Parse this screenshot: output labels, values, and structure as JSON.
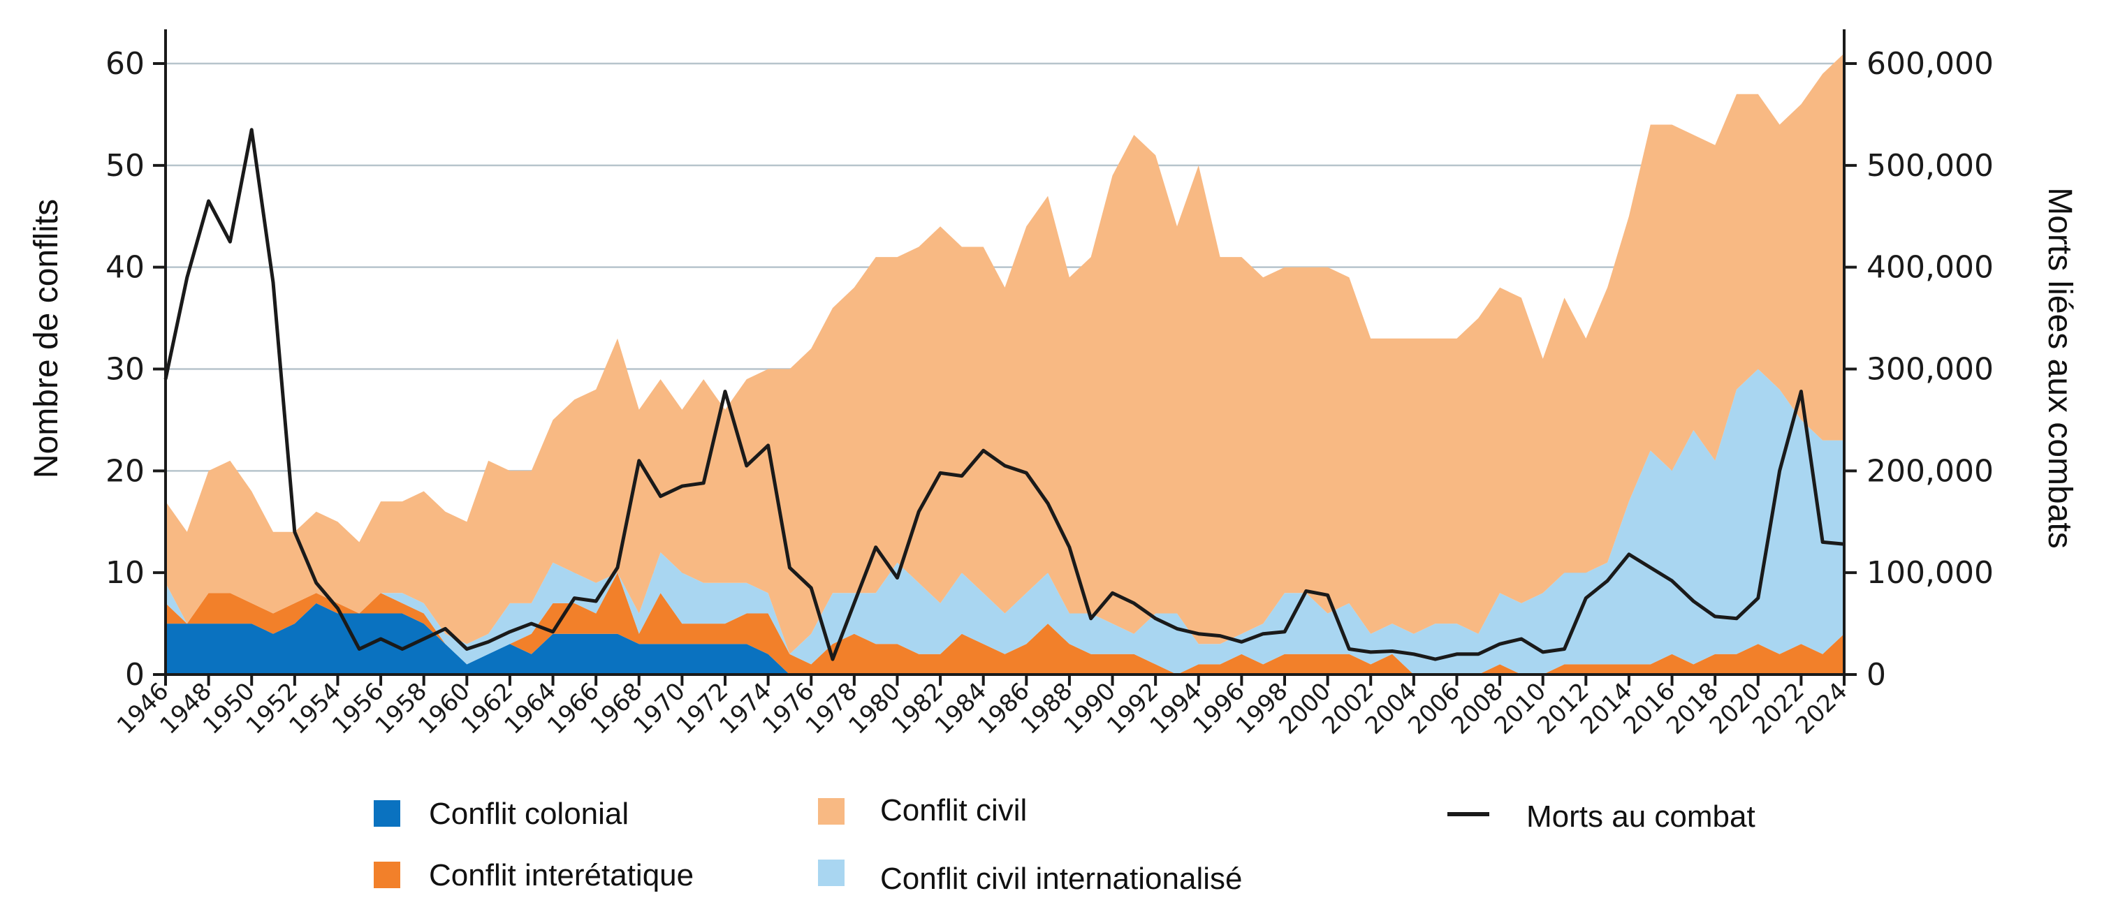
{
  "chart_data": {
    "type": "area",
    "subtype": "stacked area with line on secondary axis",
    "title": "",
    "ylabel": "Nombre de conflits",
    "y2label": "Morts liées aux combats",
    "ylim": [
      0,
      60
    ],
    "y2lim": [
      0,
      600000
    ],
    "yticks": [
      "0",
      "10",
      "20",
      "30",
      "40",
      "50",
      "60"
    ],
    "y2ticks": [
      "0",
      "100,000",
      "200,000",
      "300,000",
      "400,000",
      "500,000",
      "600,000"
    ],
    "grid": true,
    "legend_position": "bottom",
    "x": [
      1946,
      1947,
      1948,
      1949,
      1950,
      1951,
      1952,
      1953,
      1954,
      1955,
      1956,
      1957,
      1958,
      1959,
      1960,
      1961,
      1962,
      1963,
      1964,
      1965,
      1966,
      1967,
      1968,
      1969,
      1970,
      1971,
      1972,
      1973,
      1974,
      1975,
      1976,
      1977,
      1978,
      1979,
      1980,
      1981,
      1982,
      1983,
      1984,
      1985,
      1986,
      1987,
      1988,
      1989,
      1990,
      1991,
      1992,
      1993,
      1994,
      1995,
      1996,
      1997,
      1998,
      1999,
      2000,
      2001,
      2002,
      2003,
      2004,
      2005,
      2006,
      2007,
      2008,
      2009,
      2010,
      2011,
      2012,
      2013,
      2014,
      2015,
      2016,
      2017,
      2018,
      2019,
      2020,
      2021,
      2022,
      2023,
      2024
    ],
    "xticks": [
      "1946",
      "1948",
      "1950",
      "1952",
      "1954",
      "1956",
      "1958",
      "1960",
      "1962",
      "1964",
      "1966",
      "1968",
      "1970",
      "1972",
      "1974",
      "1976",
      "1978",
      "1980",
      "1982",
      "1984",
      "1986",
      "1988",
      "1990",
      "1992",
      "1994",
      "1996",
      "1998",
      "2000",
      "2002",
      "2004",
      "2006",
      "2008",
      "2010",
      "2012",
      "2014",
      "2016",
      "2018",
      "2020",
      "2022",
      "2024"
    ],
    "series": [
      {
        "name": "Conflit colonial",
        "color": "#0a72c0",
        "axis": "left",
        "kind": "area",
        "values": [
          5,
          5,
          5,
          5,
          5,
          4,
          5,
          7,
          6,
          6,
          6,
          6,
          5,
          3,
          1,
          2,
          3,
          2,
          4,
          4,
          4,
          4,
          3,
          3,
          3,
          3,
          3,
          3,
          2,
          0,
          0,
          0,
          0,
          0,
          0,
          0,
          0,
          0,
          0,
          0,
          0,
          0,
          0,
          0,
          0,
          0,
          0,
          0,
          0,
          0,
          0,
          0,
          0,
          0,
          0,
          0,
          0,
          0,
          0,
          0,
          0,
          0,
          0,
          0,
          0,
          0,
          0,
          0,
          0,
          0,
          0,
          0,
          0,
          0,
          0,
          0,
          0,
          0,
          0
        ]
      },
      {
        "name": "Conflit interétatique",
        "color": "#f2802a",
        "axis": "left",
        "kind": "area",
        "values": [
          2,
          0,
          3,
          3,
          2,
          2,
          2,
          1,
          1,
          0,
          2,
          1,
          1,
          0,
          0,
          0,
          0,
          2,
          3,
          3,
          2,
          6,
          1,
          5,
          2,
          2,
          2,
          3,
          4,
          2,
          1,
          3,
          4,
          3,
          3,
          2,
          2,
          4,
          3,
          2,
          3,
          5,
          3,
          2,
          2,
          2,
          1,
          0,
          1,
          1,
          2,
          1,
          2,
          2,
          2,
          2,
          1,
          2,
          0,
          0,
          0,
          0,
          1,
          0,
          0,
          1,
          1,
          1,
          1,
          1,
          2,
          1,
          2,
          2,
          3,
          2,
          3,
          2,
          4
        ]
      },
      {
        "name": "Conflit civil internationalisé",
        "color": "#a9d6f1",
        "axis": "left",
        "kind": "area",
        "values": [
          2,
          0,
          0,
          0,
          0,
          0,
          0,
          0,
          0,
          0,
          0,
          1,
          1,
          1,
          2,
          2,
          4,
          3,
          4,
          3,
          3,
          0,
          2,
          4,
          5,
          4,
          4,
          3,
          2,
          0,
          3,
          5,
          4,
          5,
          8,
          7,
          5,
          6,
          5,
          4,
          5,
          5,
          3,
          4,
          3,
          2,
          5,
          6,
          2,
          2,
          2,
          4,
          6,
          6,
          4,
          5,
          3,
          3,
          4,
          5,
          5,
          4,
          7,
          7,
          8,
          9,
          9,
          10,
          16,
          21,
          18,
          23,
          19,
          26,
          27,
          26,
          22,
          21,
          19
        ]
      },
      {
        "name": "Conflit civil",
        "color": "#f8b983",
        "axis": "left",
        "kind": "area",
        "values": [
          8,
          9,
          12,
          13,
          11,
          8,
          7,
          8,
          8,
          7,
          9,
          9,
          11,
          12,
          12,
          17,
          13,
          13,
          14,
          17,
          19,
          23,
          20,
          17,
          16,
          20,
          17,
          20,
          22,
          28,
          28,
          28,
          30,
          33,
          30,
          33,
          37,
          32,
          34,
          32,
          36,
          37,
          33,
          35,
          44,
          49,
          45,
          38,
          47,
          38,
          37,
          34,
          32,
          32,
          34,
          32,
          29,
          28,
          29,
          28,
          28,
          31,
          30,
          30,
          23,
          27,
          23,
          27,
          28,
          32,
          34,
          29,
          31,
          29,
          27,
          26,
          31,
          36,
          38
        ]
      },
      {
        "name": "Morts au combat",
        "color": "#1a1a1a",
        "axis": "right",
        "kind": "line",
        "values": [
          290000,
          390000,
          465000,
          425000,
          535000,
          385000,
          140000,
          90000,
          65000,
          25000,
          35000,
          25000,
          35000,
          45000,
          25000,
          32000,
          42000,
          50000,
          42000,
          75000,
          72000,
          105000,
          210000,
          175000,
          185000,
          188000,
          278000,
          205000,
          225000,
          105000,
          85000,
          15000,
          70000,
          125000,
          95000,
          160000,
          198000,
          195000,
          220000,
          205000,
          198000,
          168000,
          125000,
          55000,
          80000,
          70000,
          55000,
          45000,
          40000,
          38000,
          32000,
          40000,
          42000,
          82000,
          78000,
          25000,
          22000,
          23000,
          20000,
          15000,
          20000,
          20000,
          30000,
          35000,
          22000,
          25000,
          75000,
          92000,
          118000,
          105000,
          92000,
          72000,
          57000,
          55000,
          75000,
          200000,
          278000,
          130000,
          128000
        ]
      }
    ]
  }
}
